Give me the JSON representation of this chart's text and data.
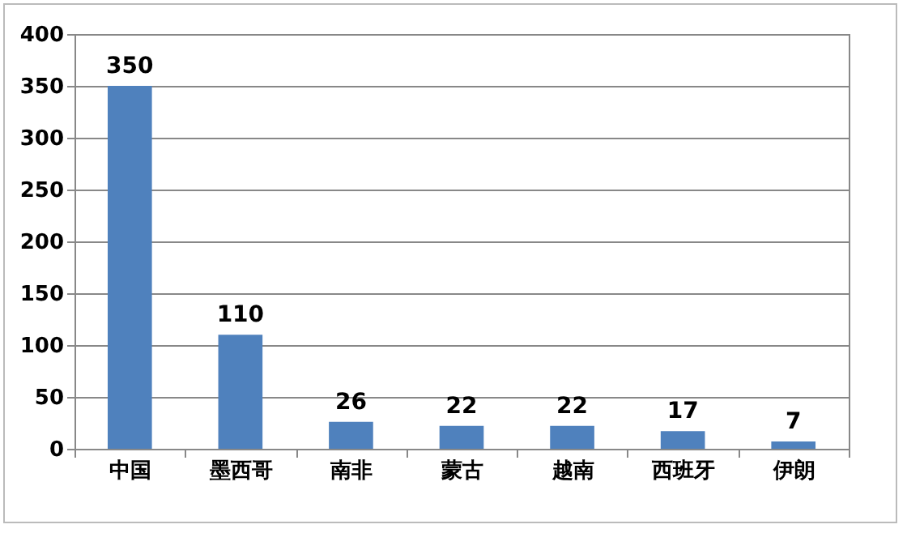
{
  "chart_data": {
    "type": "bar",
    "categories": [
      "中国",
      "墨西哥",
      "南非",
      "蒙古",
      "越南",
      "西班牙",
      "伊朗"
    ],
    "values": [
      350,
      110,
      26,
      22,
      22,
      17,
      7
    ],
    "color": "#4f81bd",
    "ylim": [
      0,
      400
    ],
    "yticks": [
      0,
      50,
      100,
      150,
      200,
      250,
      300,
      350,
      400
    ],
    "grid": "y",
    "data_labels": true
  }
}
